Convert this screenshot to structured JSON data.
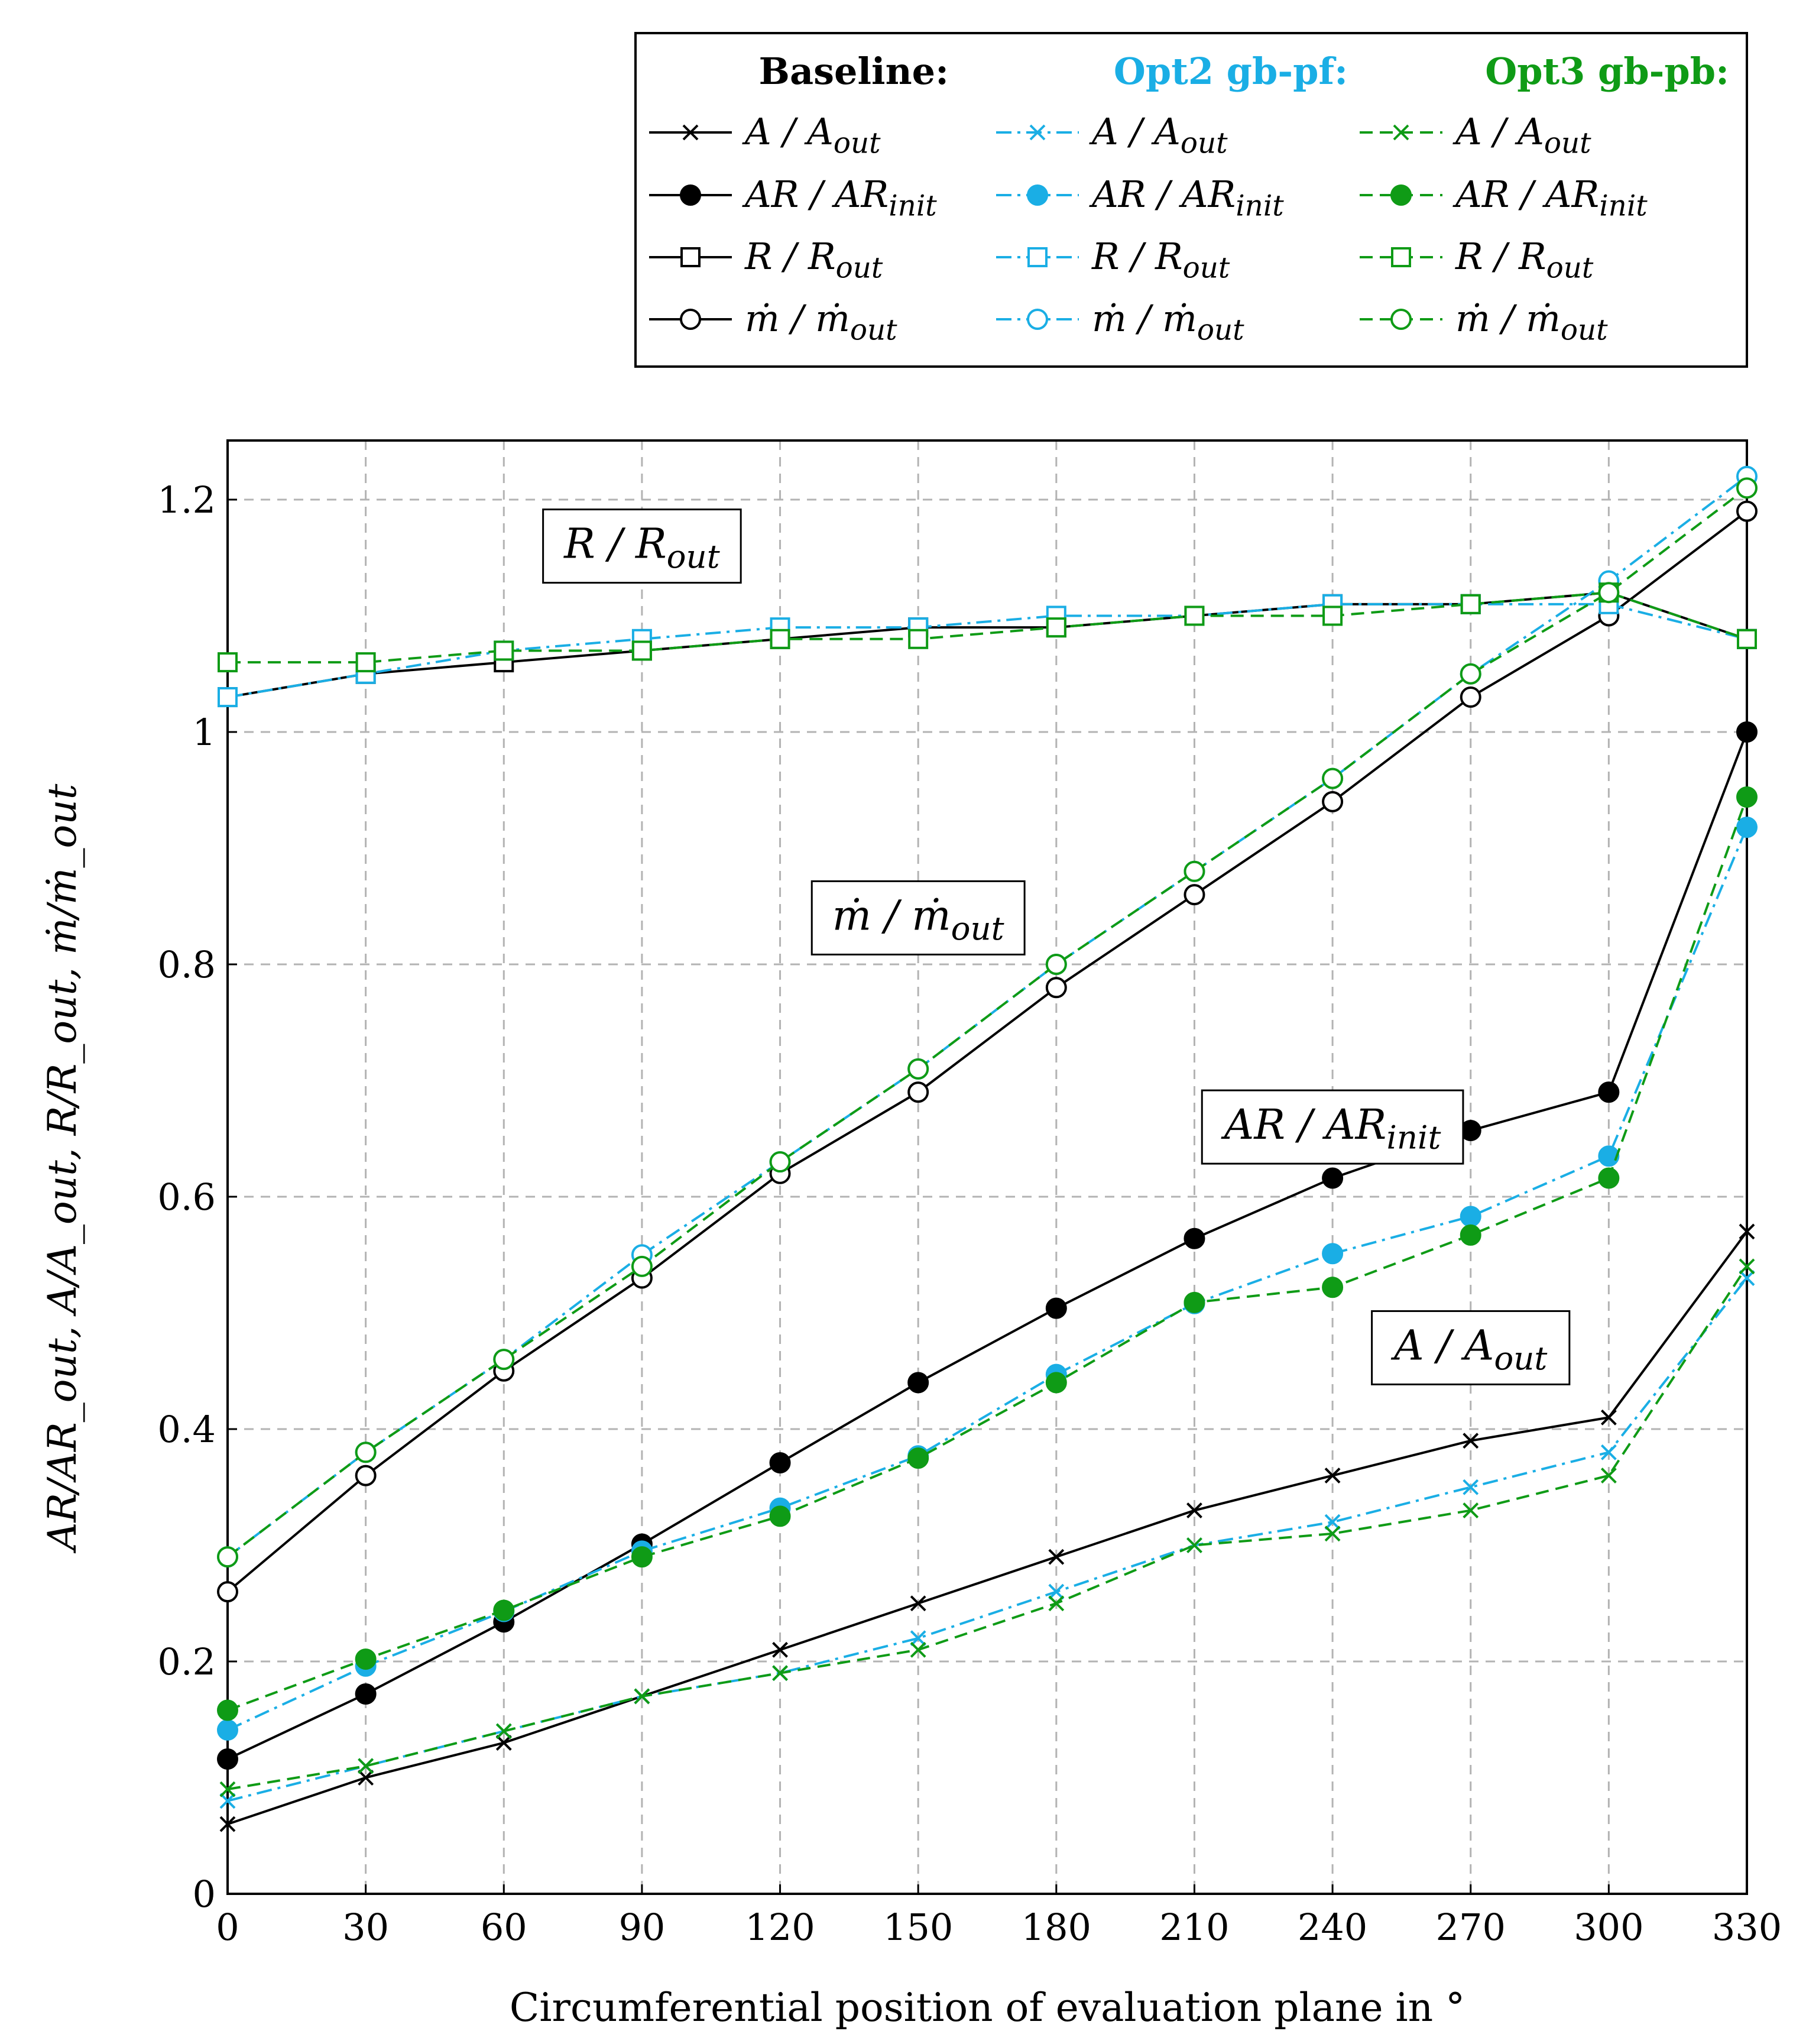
{
  "colors": {
    "baseline": "#000000",
    "opt2": "#1aaee5",
    "opt3": "#0f9b16",
    "grid": "#b3b3b3"
  },
  "chart_data": {
    "type": "line",
    "xlabel": "Circumferential position of evaluation plane in °",
    "ylabel": "AR/AR_out, A/A_out, R/R_out, ṁ/ṁ_out",
    "x": [
      0,
      30,
      60,
      90,
      120,
      150,
      180,
      210,
      240,
      270,
      300,
      330
    ],
    "xticks": [
      "0",
      "30",
      "60",
      "90",
      "120",
      "150",
      "180",
      "210",
      "240",
      "270",
      "300",
      "330"
    ],
    "xlim": [
      0,
      330
    ],
    "ylim": [
      0,
      1.25
    ],
    "yticks": [
      0,
      0.2,
      0.4,
      0.6,
      0.8,
      1,
      1.2
    ],
    "ytick_labels": [
      "0",
      "0.2",
      "0.4",
      "0.6",
      "0.8",
      "1",
      "1.2"
    ],
    "grid": true,
    "legend": {
      "placement": "top-right, above plot",
      "groups": [
        {
          "title": "Baseline:",
          "style": "baseline"
        },
        {
          "title": "Opt2 gb-pf:",
          "style": "opt2"
        },
        {
          "title": "Opt3 gb-pb:",
          "style": "opt3"
        }
      ],
      "entries": [
        {
          "label": "A / A_out",
          "quantity": "A"
        },
        {
          "label": "AR / AR_init",
          "quantity": "AR"
        },
        {
          "label": "R / R_out",
          "quantity": "R"
        },
        {
          "label": "ṁ / ṁ_out",
          "quantity": "m"
        }
      ]
    },
    "annotations": [
      {
        "text": "R / R_out",
        "x": 90,
        "y": 1.16
      },
      {
        "text": "ṁ / ṁ_out",
        "x": 150,
        "y": 0.84
      },
      {
        "text": "AR / AR_init",
        "x": 240,
        "y": 0.66
      },
      {
        "text": "A / A_out",
        "x": 270,
        "y": 0.47
      }
    ],
    "series": [
      {
        "name": "Baseline A/A_out",
        "group": "baseline",
        "quantity": "A",
        "values": [
          0.06,
          0.1,
          0.13,
          0.17,
          0.21,
          0.25,
          0.29,
          0.33,
          0.36,
          0.39,
          0.41,
          0.57
        ]
      },
      {
        "name": "Baseline AR/AR_init",
        "group": "baseline",
        "quantity": "AR",
        "values": [
          0.116,
          0.172,
          0.234,
          0.301,
          0.371,
          0.44,
          0.504,
          0.564,
          0.616,
          0.657,
          0.69,
          1.0
        ]
      },
      {
        "name": "Baseline R/R_out",
        "group": "baseline",
        "quantity": "R",
        "values": [
          1.03,
          1.05,
          1.06,
          1.07,
          1.08,
          1.09,
          1.09,
          1.1,
          1.11,
          1.11,
          1.12,
          1.08
        ]
      },
      {
        "name": "Baseline ṁ/ṁ_out",
        "group": "baseline",
        "quantity": "m",
        "values": [
          0.26,
          0.36,
          0.45,
          0.53,
          0.62,
          0.69,
          0.78,
          0.86,
          0.94,
          1.03,
          1.1,
          1.19
        ]
      },
      {
        "name": "Opt2 gb-pf A/A_out",
        "group": "opt2",
        "quantity": "A",
        "values": [
          0.08,
          0.11,
          0.14,
          0.17,
          0.19,
          0.22,
          0.26,
          0.3,
          0.32,
          0.35,
          0.38,
          0.53
        ]
      },
      {
        "name": "Opt2 gb-pf AR/AR_init",
        "group": "opt2",
        "quantity": "AR",
        "values": [
          0.141,
          0.196,
          0.243,
          0.295,
          0.332,
          0.377,
          0.447,
          0.508,
          0.551,
          0.583,
          0.635,
          0.918
        ]
      },
      {
        "name": "Opt2 gb-pf R/R_out",
        "group": "opt2",
        "quantity": "R",
        "values": [
          1.03,
          1.05,
          1.07,
          1.08,
          1.09,
          1.09,
          1.1,
          1.1,
          1.11,
          1.11,
          1.11,
          1.08
        ]
      },
      {
        "name": "Opt2 gb-pf ṁ/ṁ_out",
        "group": "opt2",
        "quantity": "m",
        "values": [
          0.29,
          0.38,
          0.46,
          0.55,
          0.63,
          0.71,
          0.8,
          0.88,
          0.96,
          1.05,
          1.13,
          1.22
        ]
      },
      {
        "name": "Opt3 gb-pb A/A_out",
        "group": "opt3",
        "quantity": "A",
        "values": [
          0.09,
          0.11,
          0.14,
          0.17,
          0.19,
          0.21,
          0.25,
          0.3,
          0.31,
          0.33,
          0.36,
          0.54
        ]
      },
      {
        "name": "Opt3 gb-pb AR/AR_init",
        "group": "opt3",
        "quantity": "AR",
        "values": [
          0.158,
          0.202,
          0.244,
          0.29,
          0.325,
          0.375,
          0.44,
          0.509,
          0.522,
          0.567,
          0.616,
          0.944
        ]
      },
      {
        "name": "Opt3 gb-pb R/R_out",
        "group": "opt3",
        "quantity": "R",
        "values": [
          1.06,
          1.06,
          1.07,
          1.07,
          1.08,
          1.08,
          1.09,
          1.1,
          1.1,
          1.11,
          1.12,
          1.08
        ]
      },
      {
        "name": "Opt3 gb-pb ṁ/ṁ_out",
        "group": "opt3",
        "quantity": "m",
        "values": [
          0.29,
          0.38,
          0.46,
          0.54,
          0.63,
          0.71,
          0.8,
          0.88,
          0.96,
          1.05,
          1.12,
          1.21
        ]
      }
    ]
  }
}
